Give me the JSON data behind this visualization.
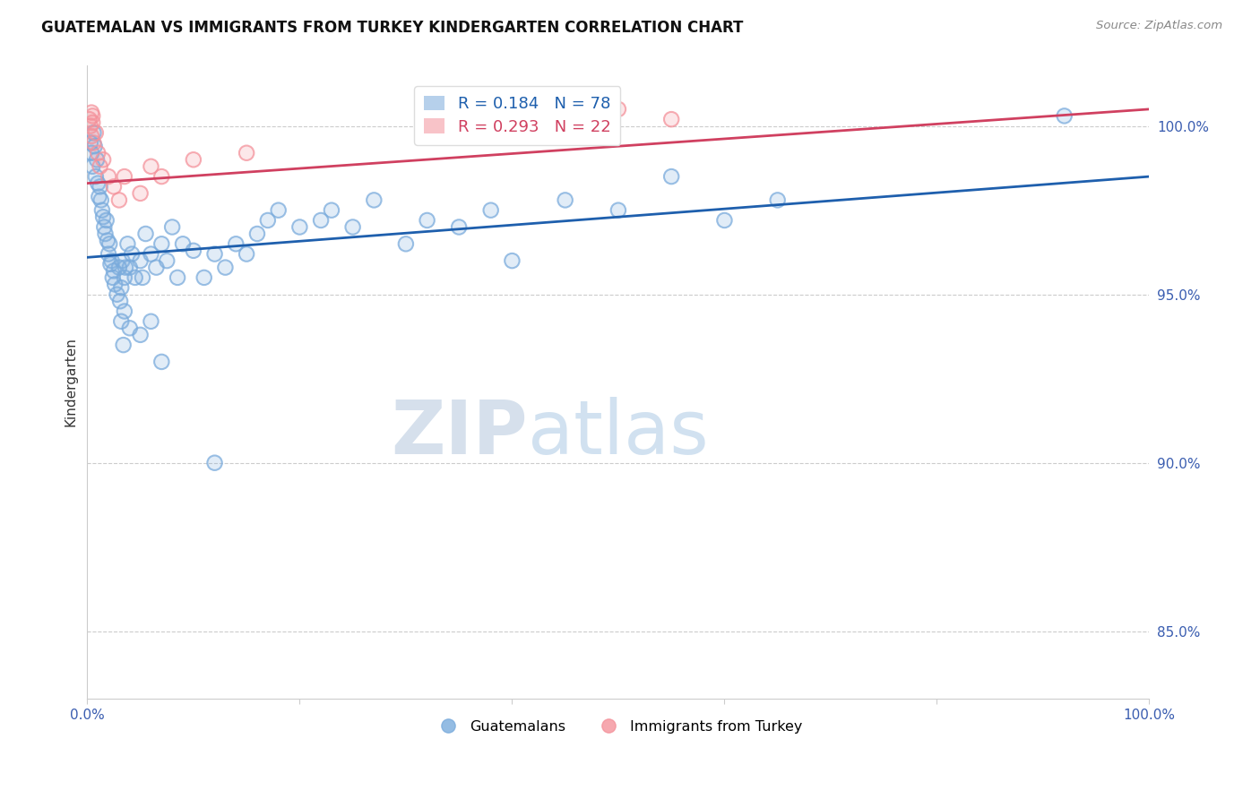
{
  "title": "GUATEMALAN VS IMMIGRANTS FROM TURKEY KINDERGARTEN CORRELATION CHART",
  "source": "Source: ZipAtlas.com",
  "ylabel": "Kindergarten",
  "right_yticks": [
    85.0,
    90.0,
    95.0,
    100.0
  ],
  "legend_blue_r": "0.184",
  "legend_blue_n": "78",
  "legend_pink_r": "0.293",
  "legend_pink_n": "22",
  "blue_color": "#7AABDC",
  "pink_color": "#F4929B",
  "blue_line_color": "#1E5FAD",
  "pink_line_color": "#D04060",
  "blue_scatter": [
    [
      0.3,
      99.5
    ],
    [
      0.4,
      99.2
    ],
    [
      0.5,
      98.8
    ],
    [
      0.6,
      99.8
    ],
    [
      0.7,
      99.4
    ],
    [
      0.8,
      98.5
    ],
    [
      0.9,
      99.0
    ],
    [
      1.0,
      98.3
    ],
    [
      1.1,
      97.9
    ],
    [
      1.2,
      98.2
    ],
    [
      1.3,
      97.8
    ],
    [
      1.4,
      97.5
    ],
    [
      1.5,
      97.3
    ],
    [
      1.6,
      97.0
    ],
    [
      1.7,
      96.8
    ],
    [
      1.8,
      97.2
    ],
    [
      1.9,
      96.6
    ],
    [
      2.0,
      96.2
    ],
    [
      2.1,
      96.5
    ],
    [
      2.2,
      95.9
    ],
    [
      2.3,
      96.0
    ],
    [
      2.4,
      95.5
    ],
    [
      2.5,
      95.7
    ],
    [
      2.6,
      95.3
    ],
    [
      2.8,
      95.0
    ],
    [
      3.0,
      95.8
    ],
    [
      3.1,
      94.8
    ],
    [
      3.2,
      95.2
    ],
    [
      3.3,
      96.0
    ],
    [
      3.5,
      95.5
    ],
    [
      3.6,
      95.8
    ],
    [
      3.8,
      96.5
    ],
    [
      4.0,
      95.8
    ],
    [
      4.2,
      96.2
    ],
    [
      4.5,
      95.5
    ],
    [
      5.0,
      96.0
    ],
    [
      5.2,
      95.5
    ],
    [
      5.5,
      96.8
    ],
    [
      6.0,
      96.2
    ],
    [
      6.5,
      95.8
    ],
    [
      7.0,
      96.5
    ],
    [
      7.5,
      96.0
    ],
    [
      8.0,
      97.0
    ],
    [
      8.5,
      95.5
    ],
    [
      9.0,
      96.5
    ],
    [
      10.0,
      96.3
    ],
    [
      11.0,
      95.5
    ],
    [
      12.0,
      96.2
    ],
    [
      13.0,
      95.8
    ],
    [
      14.0,
      96.5
    ],
    [
      15.0,
      96.2
    ],
    [
      16.0,
      96.8
    ],
    [
      17.0,
      97.2
    ],
    [
      18.0,
      97.5
    ],
    [
      20.0,
      97.0
    ],
    [
      22.0,
      97.2
    ],
    [
      23.0,
      97.5
    ],
    [
      25.0,
      97.0
    ],
    [
      27.0,
      97.8
    ],
    [
      30.0,
      96.5
    ],
    [
      32.0,
      97.2
    ],
    [
      35.0,
      97.0
    ],
    [
      38.0,
      97.5
    ],
    [
      40.0,
      96.0
    ],
    [
      45.0,
      97.8
    ],
    [
      50.0,
      97.5
    ],
    [
      55.0,
      98.5
    ],
    [
      60.0,
      97.2
    ],
    [
      65.0,
      97.8
    ],
    [
      92.0,
      100.3
    ],
    [
      3.2,
      94.2
    ],
    [
      3.4,
      93.5
    ],
    [
      3.5,
      94.5
    ],
    [
      4.0,
      94.0
    ],
    [
      5.0,
      93.8
    ],
    [
      6.0,
      94.2
    ],
    [
      7.0,
      93.0
    ],
    [
      12.0,
      90.0
    ]
  ],
  "pink_scatter": [
    [
      0.2,
      100.2
    ],
    [
      0.3,
      100.0
    ],
    [
      0.4,
      99.7
    ],
    [
      0.5,
      100.3
    ],
    [
      0.6,
      99.5
    ],
    [
      0.8,
      99.8
    ],
    [
      1.0,
      99.2
    ],
    [
      1.2,
      98.8
    ],
    [
      1.5,
      99.0
    ],
    [
      2.0,
      98.5
    ],
    [
      2.5,
      98.2
    ],
    [
      3.0,
      97.8
    ],
    [
      3.5,
      98.5
    ],
    [
      5.0,
      98.0
    ],
    [
      6.0,
      98.8
    ],
    [
      7.0,
      98.5
    ],
    [
      10.0,
      99.0
    ],
    [
      15.0,
      99.2
    ],
    [
      50.0,
      100.5
    ],
    [
      55.0,
      100.2
    ],
    [
      0.4,
      100.4
    ],
    [
      0.5,
      100.1
    ]
  ],
  "xmin": 0.0,
  "xmax": 100.0,
  "ymin": 83.0,
  "ymax": 101.8,
  "blue_line": [
    0.0,
    96.1,
    100.0,
    98.5
  ],
  "pink_line": [
    0.0,
    98.3,
    100.0,
    100.5
  ]
}
